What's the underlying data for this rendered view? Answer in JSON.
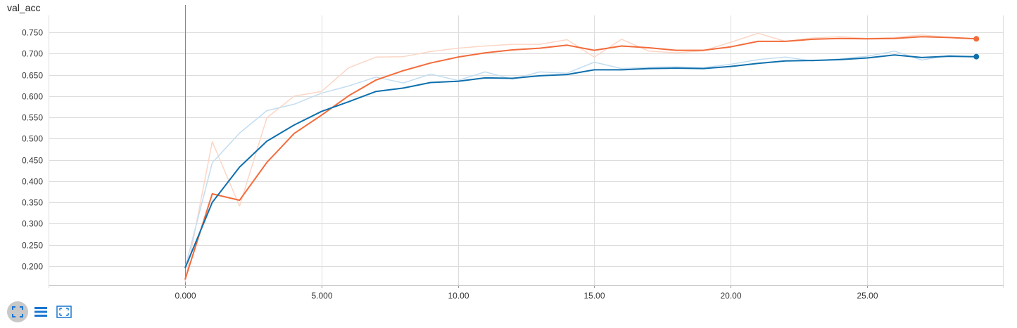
{
  "title": "val_acc",
  "colors": {
    "orange": "#f26b3a",
    "orange_raw": "#fcd6c6",
    "blue": "#0e6fad",
    "blue_raw": "#c3ddf0",
    "grid": "#dddddd",
    "zero_axis": "#888888"
  },
  "toolbar": {
    "buttons": [
      {
        "name": "expand-chart-button",
        "icon": "expand-icon",
        "active": true
      },
      {
        "name": "toggle-log-scale-button",
        "icon": "list-lines-icon",
        "active": false
      },
      {
        "name": "fit-domain-button",
        "icon": "fit-to-data-icon",
        "active": false
      }
    ]
  },
  "chart_data": {
    "type": "line",
    "title": "val_acc",
    "xlim": [
      -5,
      30
    ],
    "ylim": [
      0.155,
      0.79
    ],
    "xticks": [
      0,
      5,
      10,
      15,
      20,
      25
    ],
    "xtick_labels": [
      "0.000",
      "5.000",
      "10.00",
      "15.00",
      "20.00",
      "25.00"
    ],
    "yticks": [
      0.2,
      0.25,
      0.3,
      0.35,
      0.4,
      0.45,
      0.5,
      0.55,
      0.6,
      0.65,
      0.7,
      0.75
    ],
    "ytick_labels": [
      "0.200",
      "0.250",
      "0.300",
      "0.350",
      "0.400",
      "0.450",
      "0.500",
      "0.550",
      "0.600",
      "0.650",
      "0.700",
      "0.750"
    ],
    "grid": true,
    "x": [
      0,
      1,
      2,
      3,
      4,
      5,
      6,
      7,
      8,
      9,
      10,
      11,
      12,
      13,
      14,
      15,
      16,
      17,
      18,
      19,
      20,
      21,
      22,
      23,
      24,
      25,
      26,
      27,
      28,
      29
    ],
    "series": [
      {
        "color": "#fcd6c6",
        "smoothed": false,
        "values": [
          0.162,
          0.493,
          0.341,
          0.549,
          0.6,
          0.611,
          0.667,
          0.692,
          0.693,
          0.705,
          0.713,
          0.718,
          0.722,
          0.722,
          0.733,
          0.692,
          0.734,
          0.706,
          0.702,
          0.707,
          0.727,
          0.748,
          0.729,
          0.737,
          0.74,
          0.736,
          0.738,
          0.744,
          0.738,
          0.735
        ]
      },
      {
        "color": "#c3ddf0",
        "smoothed": false,
        "values": [
          0.195,
          0.443,
          0.513,
          0.566,
          0.581,
          0.607,
          0.624,
          0.645,
          0.631,
          0.652,
          0.637,
          0.657,
          0.64,
          0.657,
          0.654,
          0.68,
          0.665,
          0.668,
          0.669,
          0.667,
          0.675,
          0.686,
          0.692,
          0.683,
          0.688,
          0.694,
          0.706,
          0.685,
          0.696,
          0.692
        ]
      },
      {
        "color": "#f26b3a",
        "smoothed": true,
        "values": [
          0.168,
          0.37,
          0.355,
          0.444,
          0.512,
          0.555,
          0.601,
          0.638,
          0.66,
          0.678,
          0.692,
          0.702,
          0.709,
          0.713,
          0.72,
          0.708,
          0.718,
          0.714,
          0.708,
          0.708,
          0.716,
          0.729,
          0.729,
          0.734,
          0.736,
          0.735,
          0.736,
          0.74,
          0.738,
          0.735
        ]
      },
      {
        "color": "#0e6fad",
        "smoothed": true,
        "values": [
          0.195,
          0.35,
          0.433,
          0.494,
          0.532,
          0.564,
          0.587,
          0.611,
          0.619,
          0.632,
          0.635,
          0.643,
          0.642,
          0.648,
          0.651,
          0.662,
          0.662,
          0.665,
          0.666,
          0.665,
          0.67,
          0.677,
          0.683,
          0.684,
          0.686,
          0.69,
          0.697,
          0.691,
          0.694,
          0.693
        ]
      }
    ]
  }
}
